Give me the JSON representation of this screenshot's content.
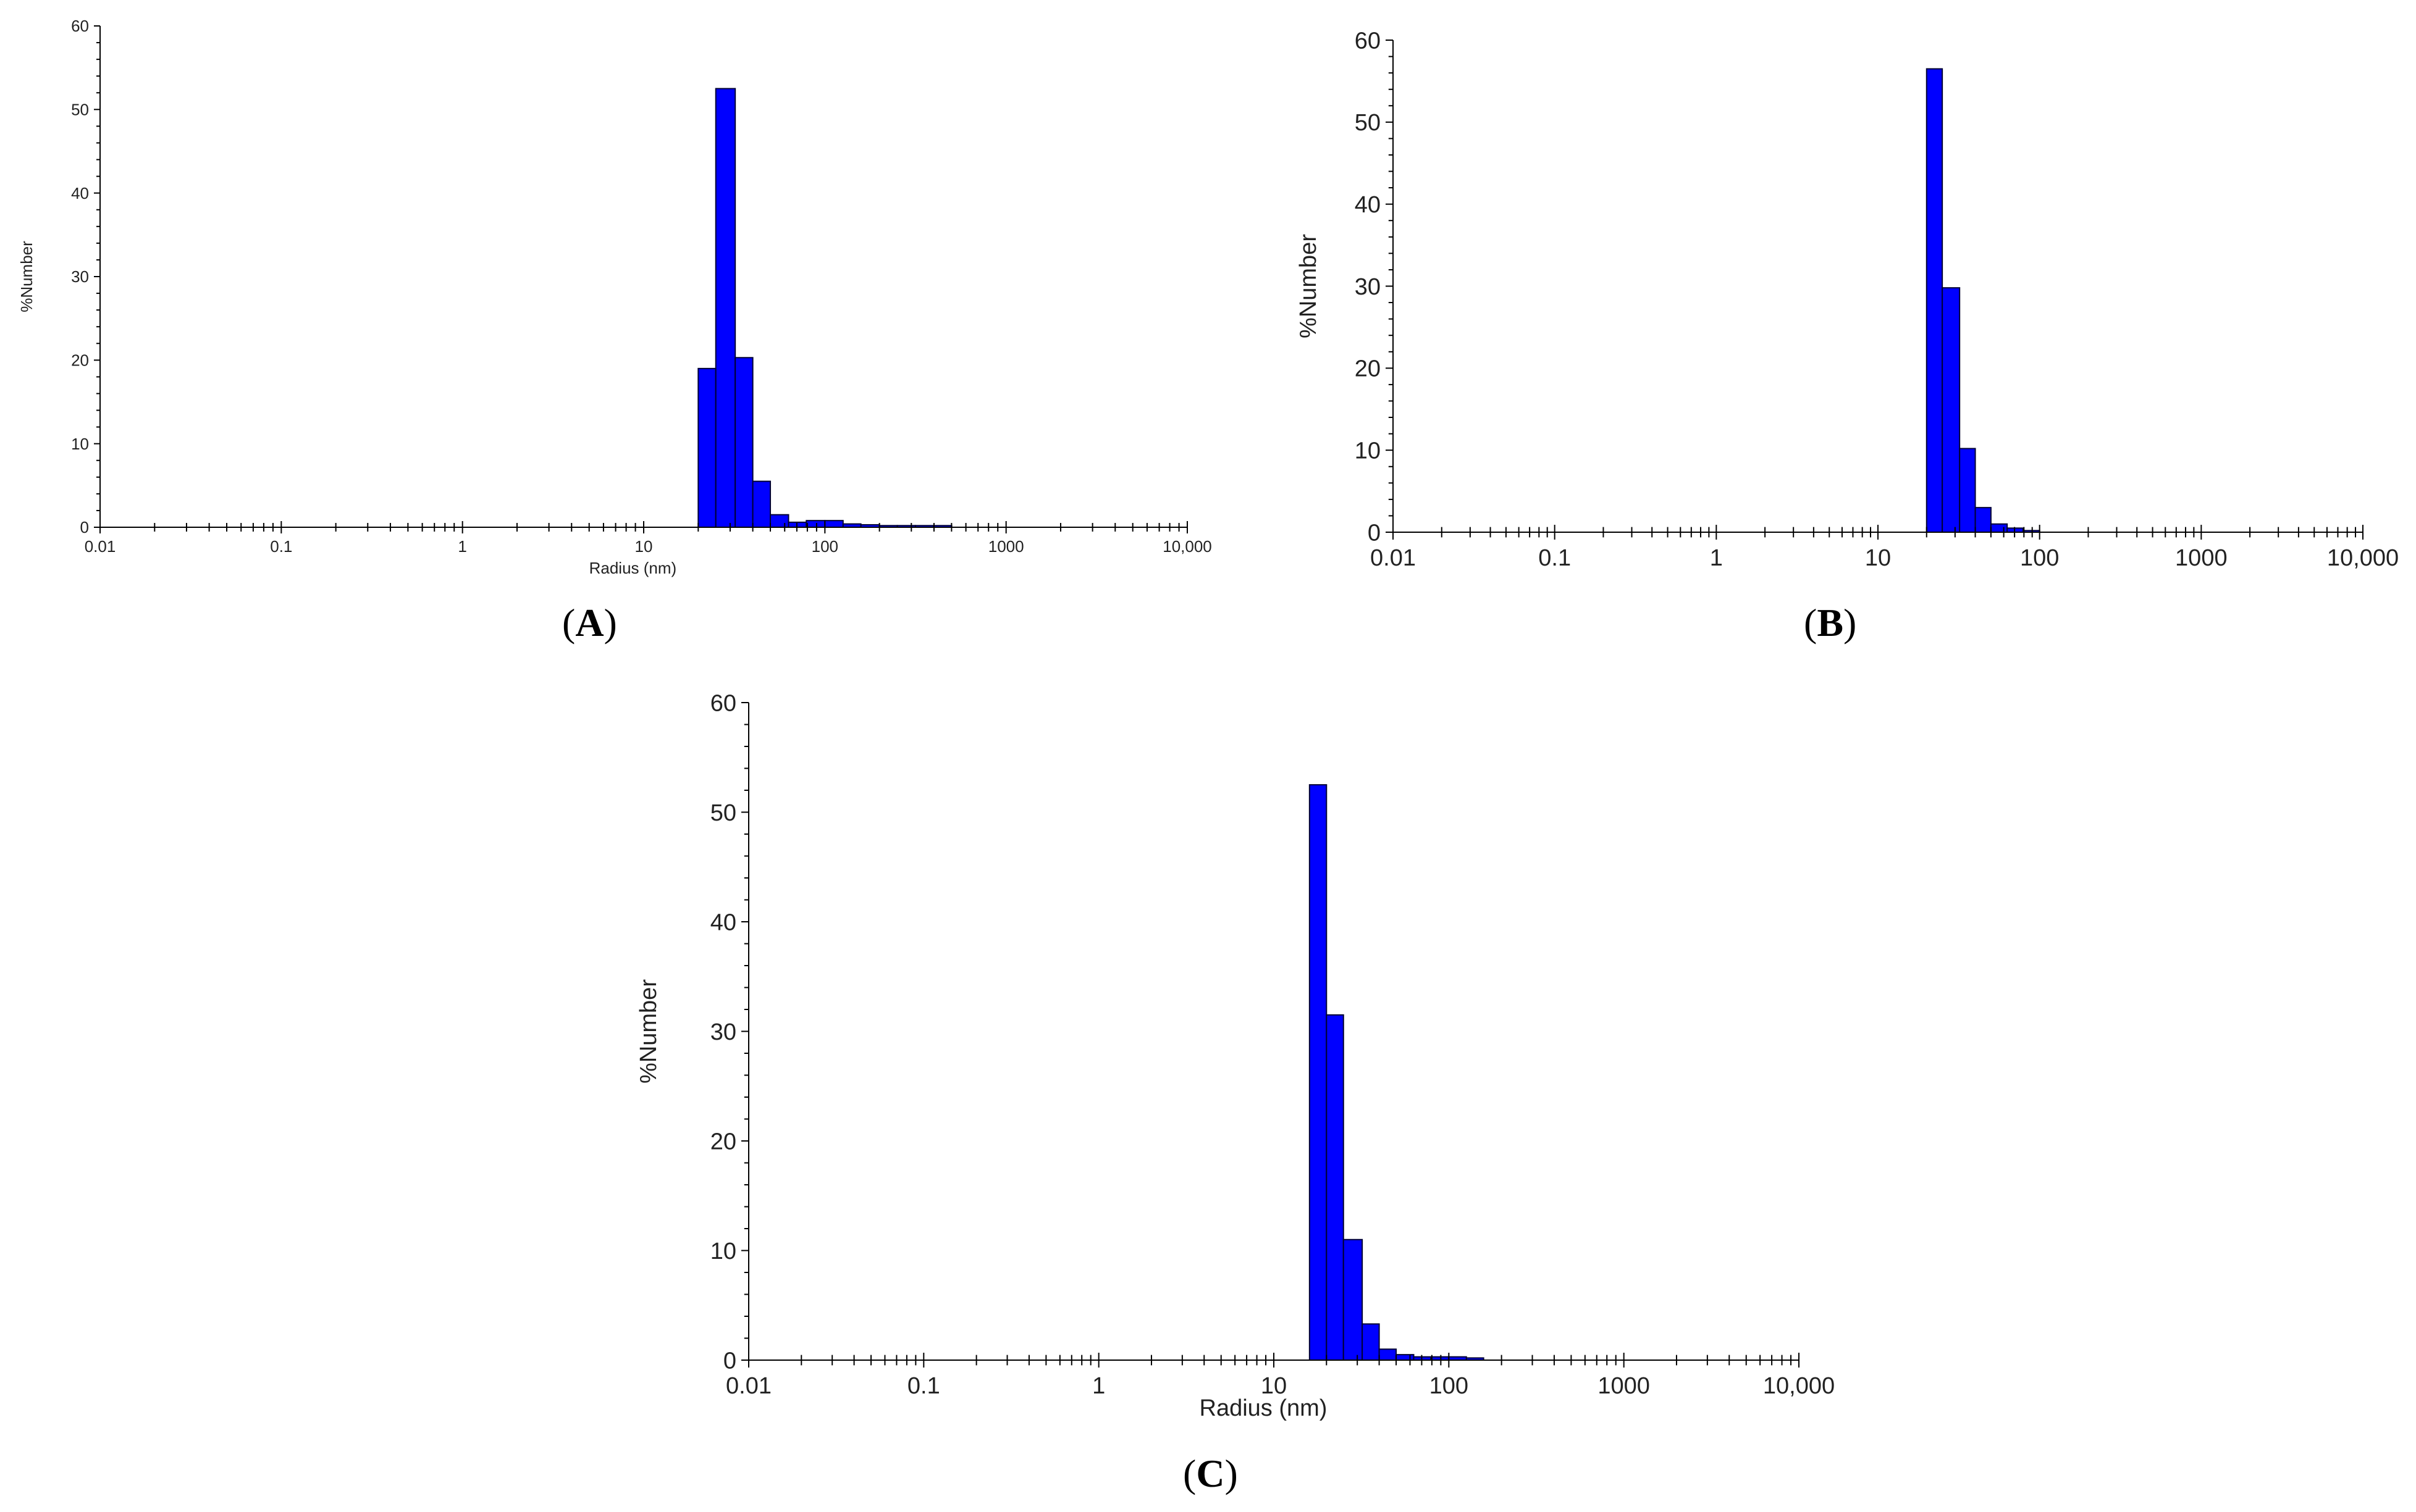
{
  "colors": {
    "bar_fill": "#0000ff",
    "bar_stroke": "#000033",
    "axis": "#000000",
    "text": "#222222"
  },
  "panels": [
    {
      "label": "A",
      "label_open": "(",
      "label_close": ")"
    },
    {
      "label": "B",
      "label_open": "(",
      "label_close": ")"
    },
    {
      "label": "C",
      "label_open": "(",
      "label_close": ")"
    }
  ],
  "chart_data": [
    {
      "type": "bar",
      "x_scale": "log",
      "xlabel": "Radius (nm)",
      "ylabel": "%Number",
      "xlim": [
        0.01,
        10000
      ],
      "ylim": [
        0,
        60
      ],
      "x_ticks": [
        "0.01",
        "0.1",
        "1",
        "10",
        "100",
        "1000",
        "10,000"
      ],
      "y_ticks": [
        "0",
        "10",
        "20",
        "30",
        "40",
        "50",
        "60"
      ],
      "bins": [
        {
          "x0": 20,
          "x1": 25,
          "y": 19
        },
        {
          "x0": 25,
          "x1": 32,
          "y": 52.5
        },
        {
          "x0": 32,
          "x1": 40,
          "y": 20.3
        },
        {
          "x0": 40,
          "x1": 50,
          "y": 5.5
        },
        {
          "x0": 50,
          "x1": 63,
          "y": 1.5
        },
        {
          "x0": 63,
          "x1": 79,
          "y": 0.6
        },
        {
          "x0": 79,
          "x1": 100,
          "y": 0.8
        },
        {
          "x0": 100,
          "x1": 126,
          "y": 0.8
        },
        {
          "x0": 126,
          "x1": 158,
          "y": 0.4
        },
        {
          "x0": 158,
          "x1": 200,
          "y": 0.3
        },
        {
          "x0": 200,
          "x1": 251,
          "y": 0.2
        },
        {
          "x0": 251,
          "x1": 316,
          "y": 0.2
        },
        {
          "x0": 316,
          "x1": 398,
          "y": 0.2
        },
        {
          "x0": 398,
          "x1": 501,
          "y": 0.2
        }
      ]
    },
    {
      "type": "bar",
      "x_scale": "log",
      "xlabel": "",
      "ylabel": "%Number",
      "xlim": [
        0.01,
        10000
      ],
      "ylim": [
        0,
        60
      ],
      "x_ticks": [
        "0.01",
        "0.1",
        "1",
        "10",
        "100",
        "1000",
        "10,000"
      ],
      "y_ticks": [
        "0",
        "10",
        "20",
        "30",
        "40",
        "50",
        "60"
      ],
      "bins": [
        {
          "x0": 20,
          "x1": 25,
          "y": 56.5
        },
        {
          "x0": 25,
          "x1": 32,
          "y": 29.8
        },
        {
          "x0": 32,
          "x1": 40,
          "y": 10.2
        },
        {
          "x0": 40,
          "x1": 50,
          "y": 3
        },
        {
          "x0": 50,
          "x1": 63,
          "y": 1
        },
        {
          "x0": 63,
          "x1": 79,
          "y": 0.5
        },
        {
          "x0": 79,
          "x1": 100,
          "y": 0.2
        }
      ]
    },
    {
      "type": "bar",
      "x_scale": "log",
      "xlabel": "Radius (nm)",
      "ylabel": "%Number",
      "xlim": [
        0.01,
        10000
      ],
      "ylim": [
        0,
        60
      ],
      "x_ticks": [
        "0.01",
        "0.1",
        "1",
        "10",
        "100",
        "1000",
        "10,000"
      ],
      "y_ticks": [
        "0",
        "10",
        "20",
        "30",
        "40",
        "50",
        "60"
      ],
      "bins": [
        {
          "x0": 16,
          "x1": 20,
          "y": 52.5
        },
        {
          "x0": 20,
          "x1": 25,
          "y": 31.5
        },
        {
          "x0": 25,
          "x1": 32,
          "y": 11
        },
        {
          "x0": 32,
          "x1": 40,
          "y": 3.3
        },
        {
          "x0": 40,
          "x1": 50,
          "y": 1
        },
        {
          "x0": 50,
          "x1": 63,
          "y": 0.5
        },
        {
          "x0": 63,
          "x1": 79,
          "y": 0.3
        },
        {
          "x0": 79,
          "x1": 100,
          "y": 0.3
        },
        {
          "x0": 100,
          "x1": 126,
          "y": 0.3
        },
        {
          "x0": 126,
          "x1": 158,
          "y": 0.2
        }
      ]
    }
  ]
}
